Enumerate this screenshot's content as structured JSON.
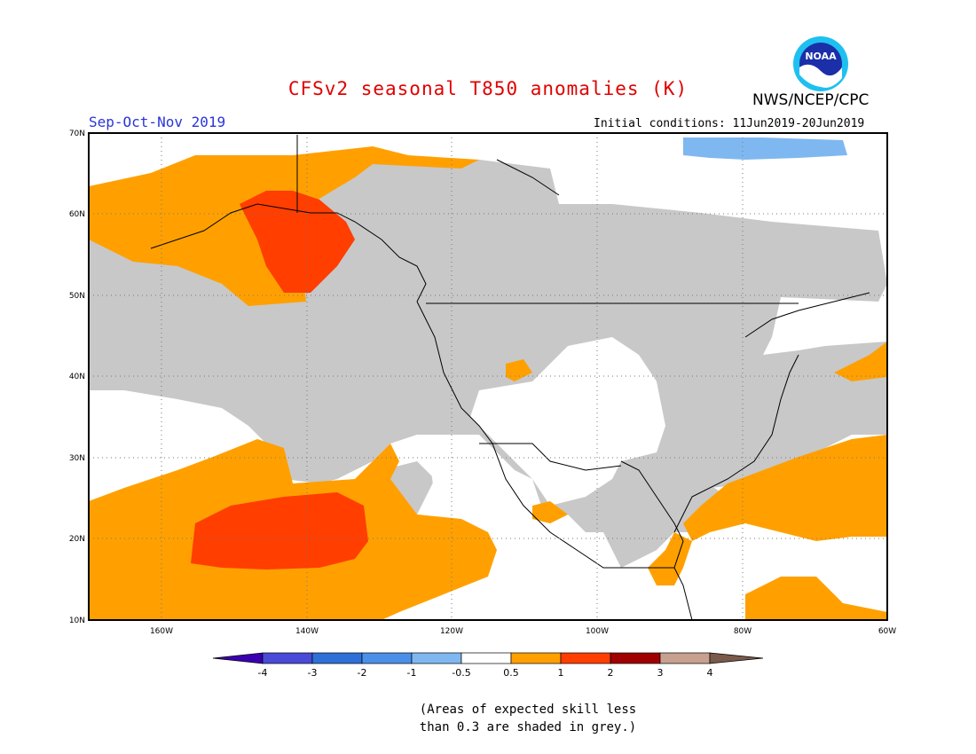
{
  "title": "CFSv2 seasonal T850 anomalies (K)",
  "org": "NWS/NCEP/CPC",
  "logo_text": "NOAA",
  "season": "Sep-Oct-Nov 2019",
  "initial_conditions": "Initial conditions: 11Jun2019-20Jun2019",
  "lat_labels": [
    "70N",
    "60N",
    "50N",
    "40N",
    "30N",
    "20N",
    "10N"
  ],
  "lon_labels": [
    "160W",
    "140W",
    "120W",
    "100W",
    "80W",
    "60W"
  ],
  "legend": {
    "tick_labels": [
      "-4",
      "-3",
      "-2",
      "-1",
      "-0.5",
      "0.5",
      "1",
      "2",
      "3",
      "4"
    ],
    "colors": [
      "#3a00b0",
      "#4a4ad8",
      "#2f70d8",
      "#4a90e8",
      "#7fb8f0",
      "#ffffff",
      "#ffa000",
      "#ff3e00",
      "#a00000",
      "#c8a090",
      "#7a5a4a"
    ]
  },
  "note_line1": "(Areas of expected skill less",
  "note_line2": "than 0.3 are shaded in grey.)",
  "colors": {
    "skill_grey": "#c8c8c8",
    "warm_05_1": "#ffa000",
    "warm_1_2": "#ff3e00",
    "cool_05_1": "#7fb8f0",
    "title_red": "#e00000",
    "season_blue": "#2a35d8"
  }
}
